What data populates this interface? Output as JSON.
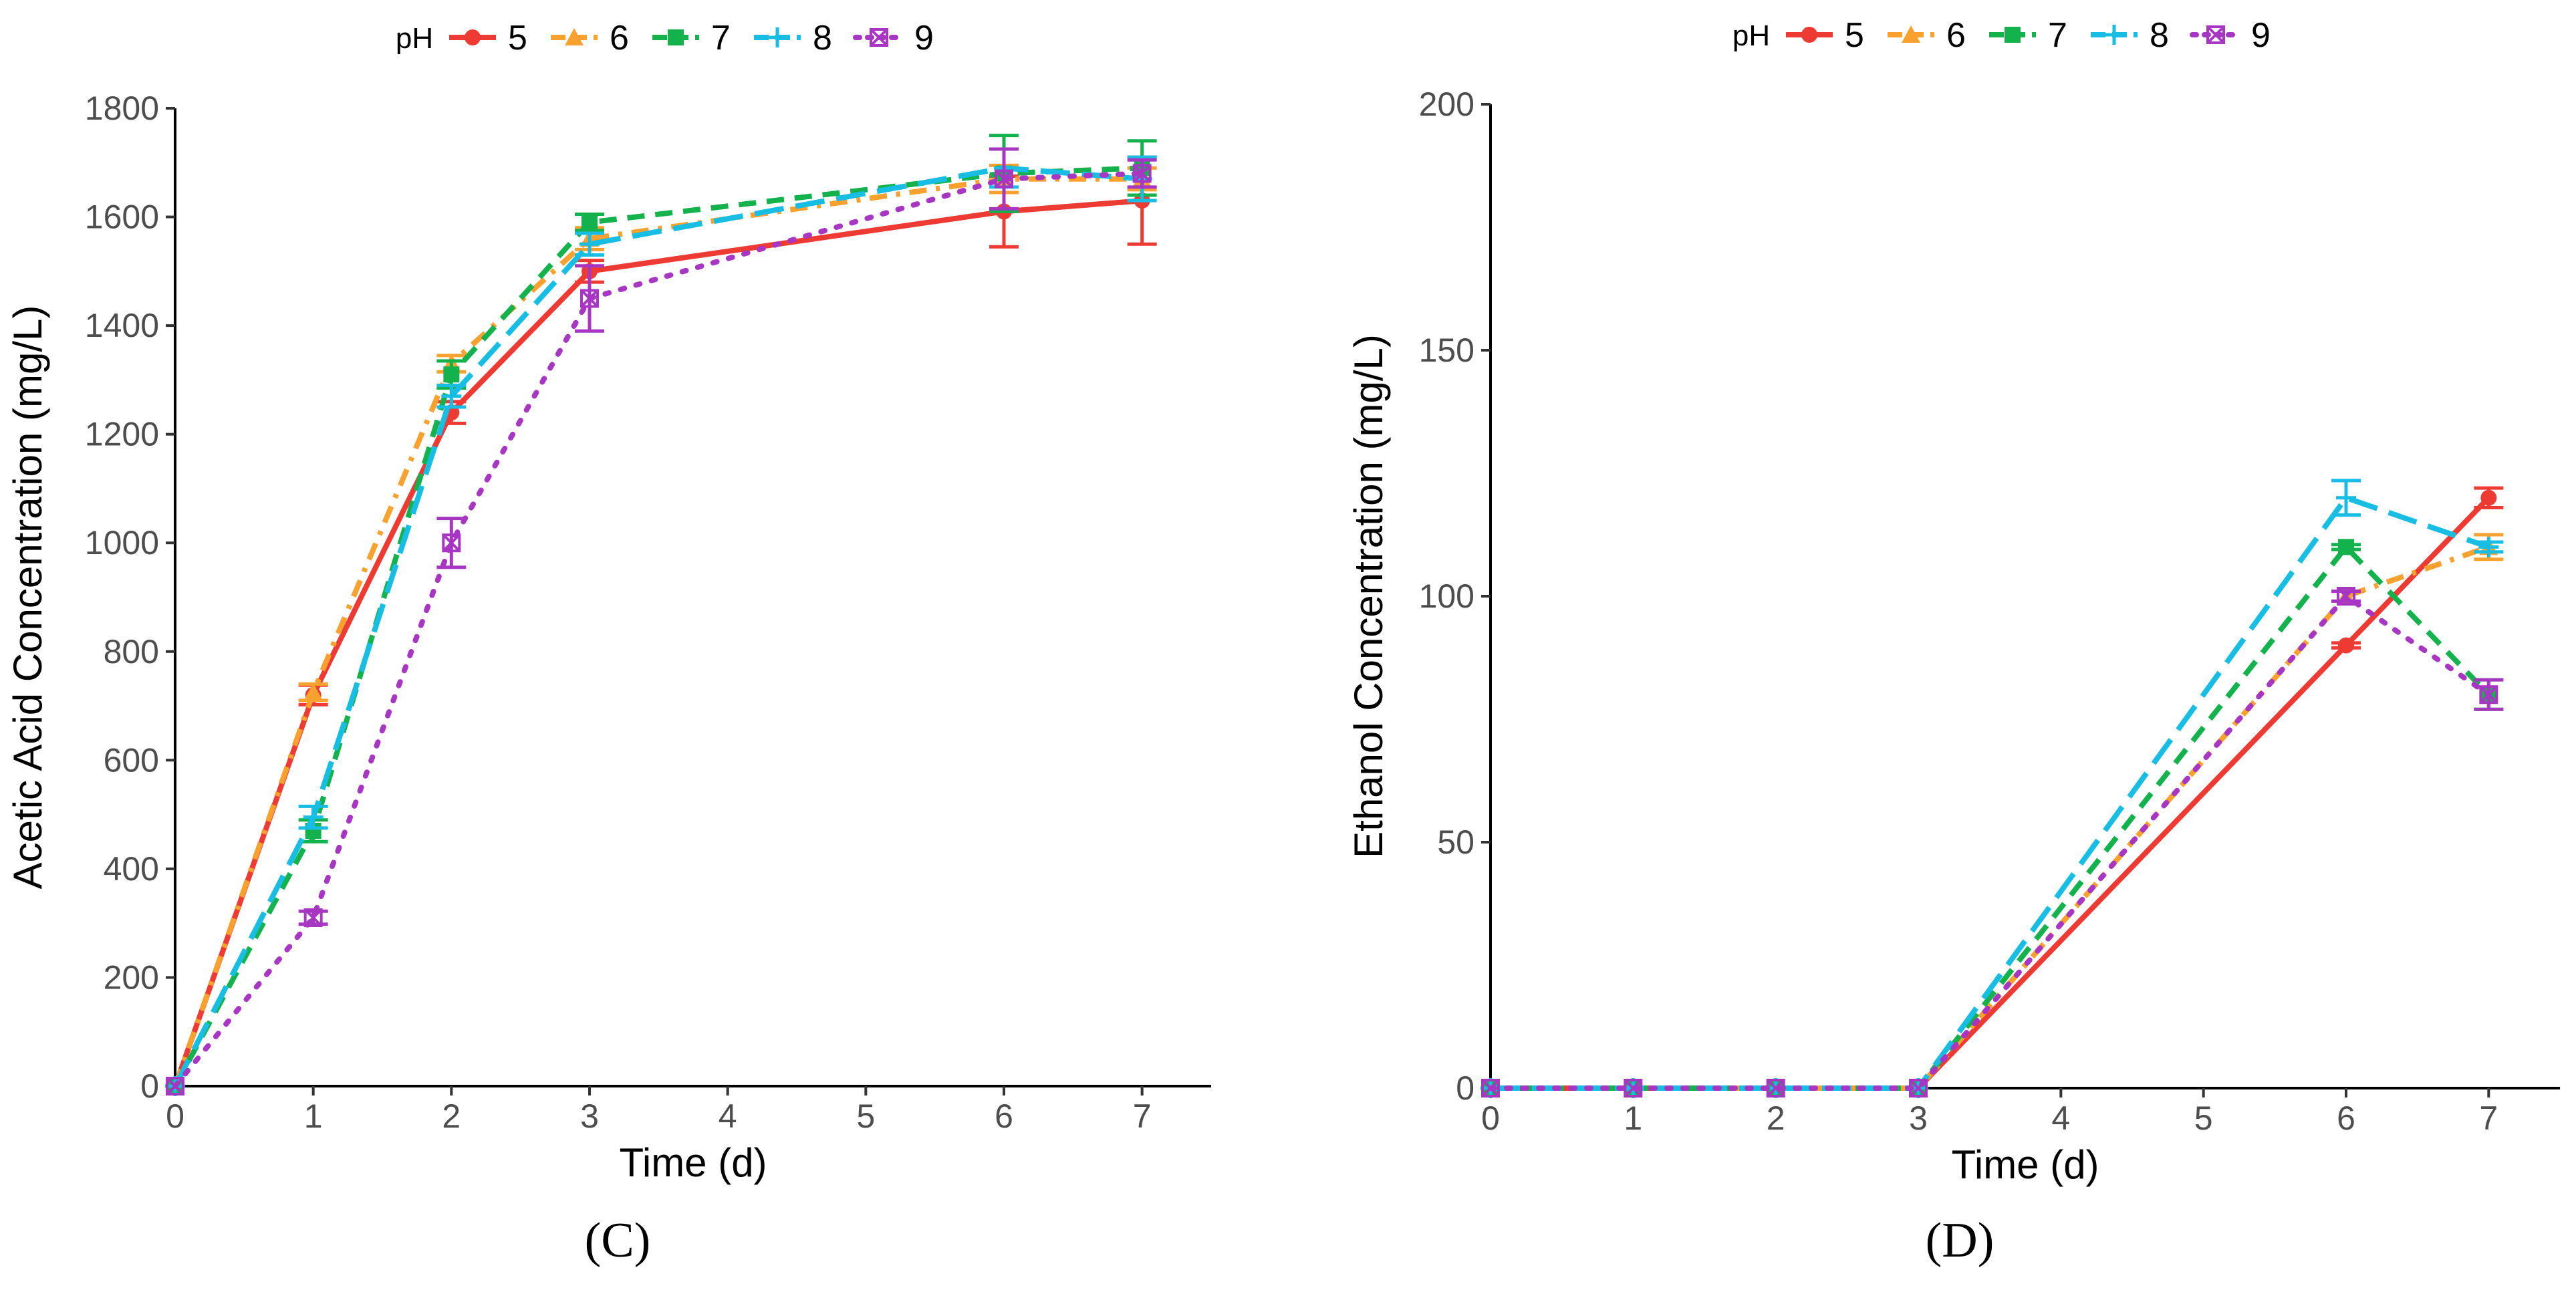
{
  "chart_data": [
    {
      "panel": "C",
      "panel_label": "(C)",
      "type": "line",
      "xlabel": "Time (d)",
      "ylabel": "Acetic Acid Concentration (mg/L)",
      "xlim": [
        0,
        7.5
      ],
      "ylim": [
        0,
        1800
      ],
      "xticks": [
        0,
        1,
        2,
        3,
        4,
        5,
        6,
        7
      ],
      "yticks": [
        0,
        200,
        400,
        600,
        800,
        1000,
        1200,
        1400,
        1600,
        1800
      ],
      "x": [
        0,
        1,
        2,
        3,
        6,
        7
      ],
      "legend_title": "pH",
      "legend_position": "top",
      "series": [
        {
          "name": "5",
          "color": "#ed3b34",
          "dash": "solid",
          "marker": "circle",
          "values": [
            0,
            720,
            1240,
            1500,
            1610,
            1630
          ],
          "errors": [
            0,
            18,
            20,
            20,
            65,
            80
          ]
        },
        {
          "name": "6",
          "color": "#f9a12e",
          "dash": "dotdash",
          "marker": "triangle",
          "values": [
            0,
            725,
            1330,
            1560,
            1670,
            1670
          ],
          "errors": [
            0,
            15,
            15,
            20,
            25,
            20
          ]
        },
        {
          "name": "7",
          "color": "#14b24c",
          "dash": "dashed",
          "marker": "square",
          "values": [
            0,
            470,
            1310,
            1590,
            1680,
            1690
          ],
          "errors": [
            0,
            20,
            25,
            15,
            70,
            50
          ]
        },
        {
          "name": "8",
          "color": "#18bde4",
          "dash": "longdash",
          "marker": "plus",
          "values": [
            0,
            495,
            1270,
            1550,
            1690,
            1670
          ],
          "errors": [
            0,
            20,
            20,
            20,
            35,
            40
          ]
        },
        {
          "name": "9",
          "color": "#a737c2",
          "dash": "dotted",
          "marker": "square-x",
          "values": [
            0,
            310,
            1000,
            1450,
            1670,
            1680
          ],
          "errors": [
            0,
            12,
            45,
            60,
            55,
            25
          ]
        }
      ]
    },
    {
      "panel": "D",
      "panel_label": "(D)",
      "type": "line",
      "xlabel": "Time (d)",
      "ylabel": "Ethanol Concentration (mg/L)",
      "xlim": [
        0,
        7.5
      ],
      "ylim": [
        0,
        200
      ],
      "xticks": [
        0,
        1,
        2,
        3,
        4,
        5,
        6,
        7
      ],
      "yticks": [
        0,
        50,
        100,
        150,
        200
      ],
      "x": [
        0,
        1,
        2,
        3,
        6,
        7
      ],
      "legend_title": "pH",
      "legend_position": "top",
      "series": [
        {
          "name": "5",
          "color": "#ed3b34",
          "dash": "solid",
          "marker": "circle",
          "values": [
            0,
            0,
            0,
            0,
            90,
            120
          ],
          "errors": [
            0,
            0,
            0,
            0,
            0.5,
            2
          ]
        },
        {
          "name": "6",
          "color": "#f9a12e",
          "dash": "dotdash",
          "marker": "triangle",
          "values": [
            0,
            0,
            0,
            0,
            100,
            110
          ],
          "errors": [
            0,
            0,
            0,
            0,
            1,
            2.5
          ]
        },
        {
          "name": "7",
          "color": "#14b24c",
          "dash": "dashed",
          "marker": "square",
          "values": [
            0,
            0,
            0,
            0,
            110,
            80
          ],
          "errors": [
            0,
            0,
            0,
            0,
            0.5,
            3
          ]
        },
        {
          "name": "8",
          "color": "#18bde4",
          "dash": "longdash",
          "marker": "plus",
          "values": [
            0,
            0,
            0,
            0,
            120,
            110
          ],
          "errors": [
            0,
            0,
            0,
            0,
            3.5,
            1
          ]
        },
        {
          "name": "9",
          "color": "#a737c2",
          "dash": "dotted",
          "marker": "square-x",
          "values": [
            0,
            0,
            0,
            0,
            100,
            80
          ],
          "errors": [
            0,
            0,
            0,
            0,
            1,
            3
          ]
        }
      ]
    }
  ]
}
